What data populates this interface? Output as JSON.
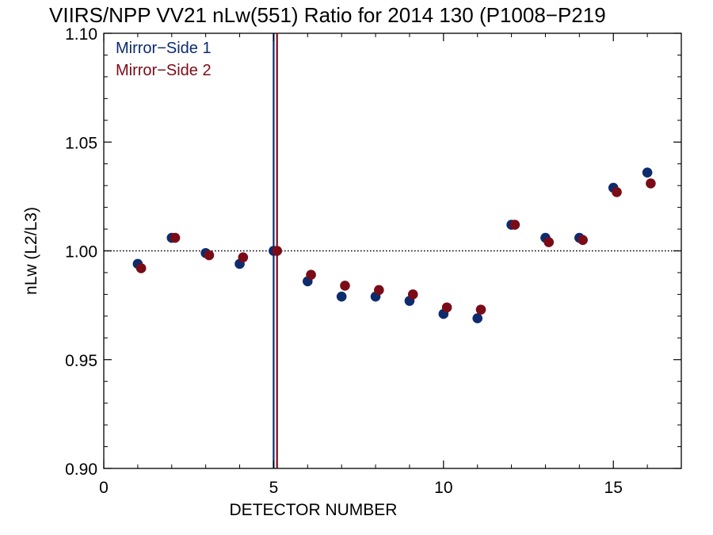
{
  "chart_data": {
    "type": "scatter",
    "title": "VIIRS/NPP VV21 nLw(551) Ratio for 2014 130 (P1008−P219",
    "xlabel": "DETECTOR NUMBER",
    "ylabel": "nLw (L2/L3)",
    "xlim": [
      0,
      17
    ],
    "ylim": [
      0.9,
      1.1
    ],
    "x_ticks": [
      0,
      5,
      10,
      15
    ],
    "x_tick_labels": [
      "0",
      "5",
      "10",
      "15"
    ],
    "y_ticks": [
      0.9,
      0.95,
      1.0,
      1.05,
      1.1
    ],
    "y_tick_labels": [
      "0.90",
      "0.95",
      "1.00",
      "1.05",
      "1.10"
    ],
    "reference_line": {
      "y": 1.0,
      "style": "dotted"
    },
    "vertical_lines": [
      {
        "x": 5.0,
        "color": "#0d2c6e"
      },
      {
        "x": 5.1,
        "color": "#7a0c17"
      }
    ],
    "legend": {
      "position": "top-left"
    },
    "series": [
      {
        "name": "Mirror−Side 1",
        "color": "#0d2c6e",
        "x": [
          1,
          2,
          3,
          4,
          5,
          6,
          7,
          8,
          9,
          10,
          11,
          12,
          13,
          14,
          15,
          16
        ],
        "y": [
          0.994,
          1.006,
          0.999,
          0.994,
          1.0,
          0.986,
          0.979,
          0.979,
          0.977,
          0.971,
          0.969,
          1.012,
          1.006,
          1.006,
          1.029,
          1.036
        ]
      },
      {
        "name": "Mirror−Side 2",
        "color": "#7a0c17",
        "x": [
          1.1,
          2.1,
          3.1,
          4.1,
          5.1,
          6.1,
          7.1,
          8.1,
          9.1,
          10.1,
          11.1,
          12.1,
          13.1,
          14.1,
          15.1,
          16.1
        ],
        "y": [
          0.992,
          1.006,
          0.998,
          0.997,
          1.0,
          0.989,
          0.984,
          0.982,
          0.98,
          0.974,
          0.973,
          1.012,
          1.004,
          1.005,
          1.027,
          1.031
        ]
      }
    ]
  }
}
